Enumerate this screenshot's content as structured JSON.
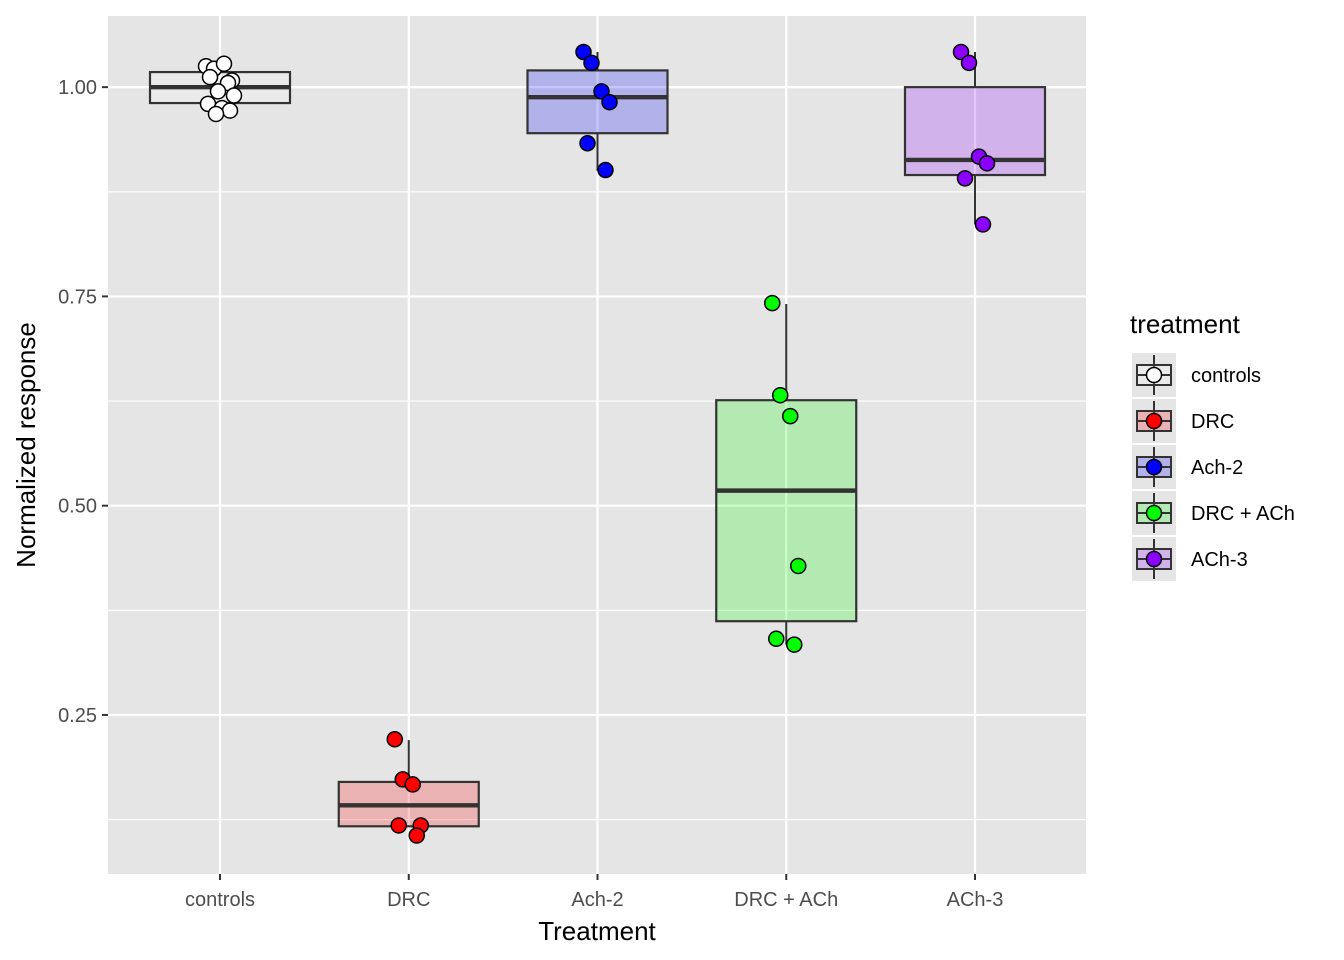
{
  "chart_data": {
    "type": "boxplot",
    "xlabel": "Treatment",
    "ylabel": "Normalized response",
    "categories": [
      "controls",
      "DRC",
      "Ach-2",
      "DRC + ACh",
      "ACh-3"
    ],
    "ylim": [
      0.06,
      1.085
    ],
    "y_ticks": [
      0.25,
      0.5,
      0.75,
      1.0
    ],
    "y_tick_labels": [
      "0.25",
      "0.50",
      "0.75",
      "1.00"
    ],
    "grid": true,
    "legend": {
      "title": "treatment",
      "placement": "right"
    },
    "colors": {
      "panel_bg": "#e5e5e5",
      "grid": "#ffffff",
      "box_stroke": "#333333"
    },
    "series": [
      {
        "name": "controls",
        "color": "#ffffff",
        "fill": "#ffffff",
        "box": {
          "q1": 0.981,
          "median": 1.0,
          "q3": 1.018,
          "whisker_low": 0.981,
          "whisker_high": 1.018
        },
        "points": [
          1.025,
          1.022,
          1.028,
          1.008,
          1.012,
          1.005,
          0.995,
          0.99,
          0.98,
          0.975,
          0.972,
          0.968
        ]
      },
      {
        "name": "DRC",
        "color": "#ff0000",
        "fill": "#ff0000",
        "box": {
          "q1": 0.117,
          "median": 0.142,
          "q3": 0.17,
          "whisker_low": 0.117,
          "whisker_high": 0.22
        },
        "points": [
          0.221,
          0.173,
          0.167,
          0.118,
          0.118,
          0.106
        ]
      },
      {
        "name": "Ach-2",
        "color": "#0000ff",
        "fill": "#0000ff",
        "box": {
          "q1": 0.945,
          "median": 0.988,
          "q3": 1.02,
          "whisker_low": 0.9,
          "whisker_high": 1.042
        },
        "points": [
          1.042,
          1.029,
          0.995,
          0.982,
          0.933,
          0.901
        ]
      },
      {
        "name": "DRC + ACh",
        "color": "#00ff00",
        "fill": "#00ff00",
        "box": {
          "q1": 0.362,
          "median": 0.518,
          "q3": 0.626,
          "whisker_low": 0.334,
          "whisker_high": 0.741
        },
        "points": [
          0.742,
          0.632,
          0.607,
          0.428,
          0.341,
          0.334
        ]
      },
      {
        "name": "ACh-3",
        "color": "#8b00ff",
        "fill": "#8b00ff",
        "box": {
          "q1": 0.895,
          "median": 0.913,
          "q3": 1.0,
          "whisker_low": 0.836,
          "whisker_high": 1.042
        },
        "points": [
          1.042,
          1.029,
          0.917,
          0.909,
          0.891,
          0.836
        ]
      }
    ]
  }
}
